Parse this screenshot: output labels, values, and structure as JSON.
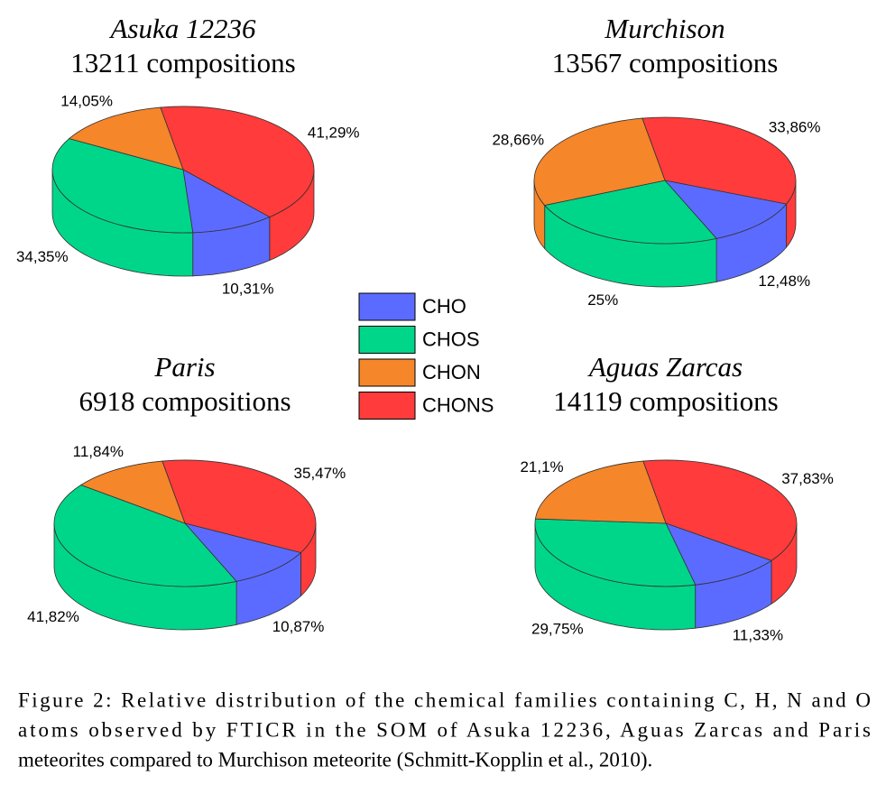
{
  "chart_data": [
    {
      "type": "pie",
      "title": "Asuka 12236",
      "subtitle": "13211 compositions",
      "values": [
        10.31,
        34.35,
        14.05,
        41.29
      ],
      "value_labels": [
        "10,31%",
        "34,35%",
        "14,05%",
        "41,29%"
      ]
    },
    {
      "type": "pie",
      "title": "Murchison",
      "subtitle": "13567 compositions",
      "values": [
        12.48,
        25,
        28.66,
        33.86
      ],
      "value_labels": [
        "12,48%",
        "25%",
        "28,66%",
        "33,86%"
      ]
    },
    {
      "type": "pie",
      "title": "Paris",
      "subtitle": "6918 compositions",
      "values": [
        10.87,
        41.82,
        11.84,
        35.47
      ],
      "value_labels": [
        "10,87%",
        "41,82%",
        "11,84%",
        "35,47%"
      ]
    },
    {
      "type": "pie",
      "title": "Aguas Zarcas",
      "subtitle": "14119 compositions",
      "values": [
        11.33,
        29.75,
        21.1,
        37.83
      ],
      "value_labels": [
        "11,33%",
        "29,75%",
        "21,1%",
        "37,83%"
      ]
    }
  ],
  "legend": {
    "categories": [
      "CHO",
      "CHOS",
      "CHON",
      "CHONS"
    ],
    "colors": [
      "#5b6bff",
      "#00d68a",
      "#f5862a",
      "#ff3b3b"
    ]
  },
  "caption": [
    "Figure 2: Relative distribution of the chemical families containing C, H, N and O",
    "atoms observed by FTICR in the SOM of Asuka 12236, Aguas Zarcas and Paris",
    "meteorites compared to Murchison meteorite (Schmitt-Kopplin et al., 2010)."
  ]
}
